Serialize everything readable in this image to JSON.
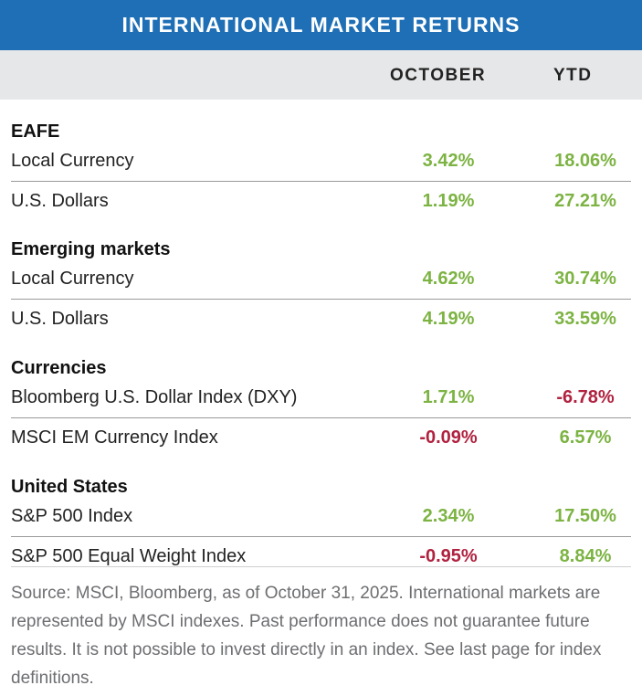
{
  "title": "INTERNATIONAL MARKET RETURNS",
  "columns": {
    "period1": "OCTOBER",
    "period2": "YTD"
  },
  "groups": [
    {
      "name": "EAFE",
      "rows": [
        {
          "label": "Local Currency",
          "oct": "3.42%",
          "ytd": "18.06%"
        },
        {
          "label": "U.S. Dollars",
          "oct": "1.19%",
          "ytd": "27.21%"
        }
      ]
    },
    {
      "name": "Emerging markets",
      "rows": [
        {
          "label": "Local Currency",
          "oct": "4.62%",
          "ytd": "30.74%"
        },
        {
          "label": "U.S. Dollars",
          "oct": "4.19%",
          "ytd": "33.59%"
        }
      ]
    },
    {
      "name": "Currencies",
      "rows": [
        {
          "label": "Bloomberg U.S. Dollar Index (DXY)",
          "oct": "1.71%",
          "ytd": "-6.78%"
        },
        {
          "label": "MSCI EM Currency Index",
          "oct": "-0.09%",
          "ytd": "6.57%"
        }
      ]
    },
    {
      "name": "United States",
      "rows": [
        {
          "label": "S&P 500 Index",
          "oct": "2.34%",
          "ytd": "17.50%"
        },
        {
          "label": "S&P 500 Equal Weight Index",
          "oct": "-0.95%",
          "ytd": "8.84%"
        }
      ]
    }
  ],
  "source": "Source: MSCI, Bloomberg, as of October 31, 2025. International markets are  represented by MSCI indexes. Past performance does not guarantee future results. It is not possible to invest directly in an index. See last page for index definitions.",
  "colors": {
    "header_bg": "#1e6fb5",
    "positive": "#7cb342",
    "negative": "#b0223f",
    "subheader_bg": "#e6e7e8"
  }
}
